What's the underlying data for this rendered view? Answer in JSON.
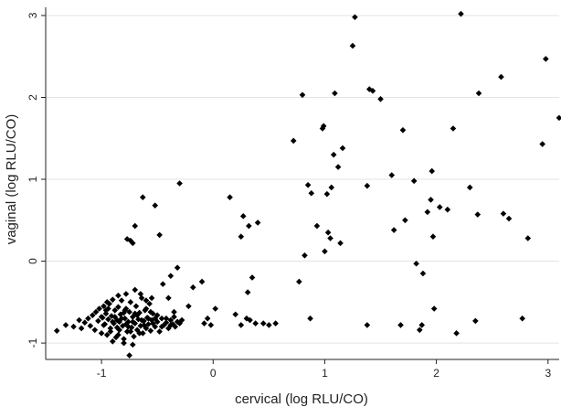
{
  "chart_data": {
    "type": "scatter",
    "title": "",
    "xlabel": "cervical (log RLU/CO)",
    "ylabel": "vaginal (log RLU/CO)",
    "xlim": [
      -1.5,
      3.1
    ],
    "ylim": [
      -1.2,
      3.1
    ],
    "x_ticks": [
      -1,
      0,
      1,
      2,
      3
    ],
    "y_ticks": [
      -1,
      0,
      1,
      2,
      3
    ],
    "grid": "horizontal",
    "marker_color": "#000000",
    "grid_color": "#e3e3e3",
    "axis_color": "#222222",
    "series": [
      {
        "points": [
          [
            -1.4,
            -0.85
          ],
          [
            -1.32,
            -0.78
          ],
          [
            -1.25,
            -0.8
          ],
          [
            -1.2,
            -0.72
          ],
          [
            -1.18,
            -0.82
          ],
          [
            -1.15,
            -0.75
          ],
          [
            -1.12,
            -0.7
          ],
          [
            -1.1,
            -0.79
          ],
          [
            -1.08,
            -0.66
          ],
          [
            -1.06,
            -0.84
          ],
          [
            -1.05,
            -0.62
          ],
          [
            -1.03,
            -0.73
          ],
          [
            -1.02,
            -0.58
          ],
          [
            -1.0,
            -0.88
          ],
          [
            -0.99,
            -0.69
          ],
          [
            -0.98,
            -0.55
          ],
          [
            -0.97,
            -0.77
          ],
          [
            -0.96,
            -0.64
          ],
          [
            -0.95,
            -0.9
          ],
          [
            -0.94,
            -0.71
          ],
          [
            -0.93,
            -0.52
          ],
          [
            -0.92,
            -0.82
          ],
          [
            -0.91,
            -0.67
          ],
          [
            -0.9,
            -0.47
          ],
          [
            -0.89,
            -0.76
          ],
          [
            -0.88,
            -0.6
          ],
          [
            -0.87,
            -0.93
          ],
          [
            -0.86,
            -0.72
          ],
          [
            -0.85,
            -0.56
          ],
          [
            -0.84,
            -0.84
          ],
          [
            -0.83,
            -0.65
          ],
          [
            -0.82,
            -0.48
          ],
          [
            -0.81,
            -0.79
          ],
          [
            -0.8,
            -0.95
          ],
          [
            -0.79,
            -0.7
          ],
          [
            -0.78,
            -0.58
          ],
          [
            -0.77,
            -0.86
          ],
          [
            -0.76,
            -0.74
          ],
          [
            -0.75,
            -0.62
          ],
          [
            -0.74,
            -0.5
          ],
          [
            -0.73,
            -0.81
          ],
          [
            -0.72,
            -0.68
          ],
          [
            -0.71,
            -0.92
          ],
          [
            -0.7,
            -0.76
          ],
          [
            -0.69,
            -0.55
          ],
          [
            -0.68,
            -0.84
          ],
          [
            -0.67,
            -0.71
          ],
          [
            -0.66,
            -0.63
          ],
          [
            -0.65,
            -0.79
          ],
          [
            -0.64,
            -0.45
          ],
          [
            -0.63,
            -0.88
          ],
          [
            -0.62,
            -0.73
          ],
          [
            -0.61,
            -0.6
          ],
          [
            -0.6,
            -0.82
          ],
          [
            -0.59,
            -0.69
          ],
          [
            -0.58,
            -0.77
          ],
          [
            -0.57,
            -0.52
          ],
          [
            -0.56,
            -0.85
          ],
          [
            -0.55,
            -0.72
          ],
          [
            -0.54,
            -0.64
          ],
          [
            -0.52,
            -0.8
          ],
          [
            -0.5,
            -0.74
          ],
          [
            -0.48,
            -0.86
          ],
          [
            -0.46,
            -0.7
          ],
          [
            -0.44,
            -0.78
          ],
          [
            -0.42,
            -0.75
          ],
          [
            -0.4,
            -0.82
          ],
          [
            -0.38,
            -0.72
          ],
          [
            -0.36,
            -0.77
          ],
          [
            -0.34,
            -0.8
          ],
          [
            -0.32,
            -0.74
          ],
          [
            -0.96,
            -0.6
          ],
          [
            -0.92,
            -0.86
          ],
          [
            -0.88,
            -0.68
          ],
          [
            -0.84,
            -0.74
          ],
          [
            -0.8,
            -0.63
          ],
          [
            -0.76,
            -0.8
          ],
          [
            -0.72,
            -0.74
          ],
          [
            -0.68,
            -0.66
          ],
          [
            -0.64,
            -0.72
          ],
          [
            -0.6,
            -0.58
          ],
          [
            -0.56,
            -0.62
          ],
          [
            -0.52,
            -0.7
          ],
          [
            -0.86,
            -0.81
          ],
          [
            -0.82,
            -0.7
          ],
          [
            -0.78,
            -0.77
          ],
          [
            -0.74,
            -0.86
          ],
          [
            -0.7,
            -0.64
          ],
          [
            -0.66,
            -0.88
          ],
          [
            -1.0,
            -0.68
          ],
          [
            -0.98,
            -0.78
          ],
          [
            -0.94,
            -0.58
          ],
          [
            -0.9,
            -0.74
          ],
          [
            -0.85,
            -0.9
          ],
          [
            -0.79,
            -0.6
          ],
          [
            -0.75,
            -1.15
          ],
          [
            -0.72,
            -1.02
          ],
          [
            -0.8,
            -1.0
          ],
          [
            -0.9,
            -0.98
          ],
          [
            -0.78,
            -0.4
          ],
          [
            -0.7,
            -0.35
          ],
          [
            -0.85,
            -0.42
          ],
          [
            -0.65,
            -0.4
          ],
          [
            -0.95,
            -0.5
          ],
          [
            -0.6,
            -0.48
          ],
          [
            -0.55,
            -0.45
          ],
          [
            -0.62,
            -0.78
          ],
          [
            -0.58,
            -0.7
          ],
          [
            -0.54,
            -0.76
          ],
          [
            -0.5,
            -0.66
          ],
          [
            -0.46,
            -0.8
          ],
          [
            -0.42,
            -0.7
          ],
          [
            -0.38,
            -0.78
          ],
          [
            -0.35,
            -0.68
          ],
          [
            -0.3,
            -0.76
          ],
          [
            -0.28,
            -0.72
          ],
          [
            -0.74,
            0.25
          ],
          [
            -0.77,
            0.27
          ],
          [
            -0.72,
            0.22
          ],
          [
            -0.7,
            0.43
          ],
          [
            -0.63,
            0.78
          ],
          [
            -0.52,
            0.68
          ],
          [
            -0.48,
            0.32
          ],
          [
            -0.3,
            0.95
          ],
          [
            -0.35,
            -0.62
          ],
          [
            -0.4,
            -0.45
          ],
          [
            -0.32,
            -0.08
          ],
          [
            -0.38,
            -0.18
          ],
          [
            -0.45,
            -0.28
          ],
          [
            -0.22,
            -0.55
          ],
          [
            -0.18,
            -0.32
          ],
          [
            -0.1,
            -0.25
          ],
          [
            -0.08,
            -0.76
          ],
          [
            -0.05,
            -0.7
          ],
          [
            -0.02,
            -0.78
          ],
          [
            0.02,
            -0.58
          ],
          [
            0.15,
            0.78
          ],
          [
            0.2,
            -0.65
          ],
          [
            0.25,
            -0.78
          ],
          [
            0.25,
            0.3
          ],
          [
            0.27,
            0.55
          ],
          [
            0.3,
            -0.7
          ],
          [
            0.31,
            -0.38
          ],
          [
            0.32,
            0.43
          ],
          [
            0.33,
            -0.72
          ],
          [
            0.35,
            -0.2
          ],
          [
            0.38,
            -0.76
          ],
          [
            0.4,
            0.47
          ],
          [
            0.45,
            -0.76
          ],
          [
            0.5,
            -0.78
          ],
          [
            0.56,
            -0.76
          ],
          [
            0.72,
            1.47
          ],
          [
            0.77,
            -0.25
          ],
          [
            0.8,
            2.03
          ],
          [
            0.82,
            0.07
          ],
          [
            0.85,
            0.93
          ],
          [
            0.87,
            -0.7
          ],
          [
            0.88,
            0.83
          ],
          [
            0.93,
            0.43
          ],
          [
            0.98,
            1.62
          ],
          [
            0.99,
            1.65
          ],
          [
            1.0,
            0.12
          ],
          [
            1.02,
            0.82
          ],
          [
            1.03,
            0.35
          ],
          [
            1.05,
            0.28
          ],
          [
            1.06,
            0.9
          ],
          [
            1.08,
            1.3
          ],
          [
            1.09,
            2.05
          ],
          [
            1.12,
            1.15
          ],
          [
            1.14,
            0.22
          ],
          [
            1.16,
            1.38
          ],
          [
            1.25,
            2.63
          ],
          [
            1.27,
            2.98
          ],
          [
            1.38,
            -0.78
          ],
          [
            1.38,
            0.92
          ],
          [
            1.4,
            2.1
          ],
          [
            1.43,
            2.08
          ],
          [
            1.5,
            1.98
          ],
          [
            1.6,
            1.05
          ],
          [
            1.62,
            0.38
          ],
          [
            1.68,
            -0.78
          ],
          [
            1.7,
            1.6
          ],
          [
            1.72,
            0.5
          ],
          [
            1.8,
            0.98
          ],
          [
            1.82,
            -0.03
          ],
          [
            1.85,
            -0.84
          ],
          [
            1.87,
            -0.78
          ],
          [
            1.88,
            -0.15
          ],
          [
            1.92,
            0.6
          ],
          [
            1.95,
            0.75
          ],
          [
            1.96,
            1.1
          ],
          [
            1.97,
            0.3
          ],
          [
            1.98,
            -0.58
          ],
          [
            2.03,
            0.66
          ],
          [
            2.1,
            0.63
          ],
          [
            2.15,
            1.62
          ],
          [
            2.18,
            -0.88
          ],
          [
            2.22,
            3.02
          ],
          [
            2.3,
            0.9
          ],
          [
            2.35,
            -0.73
          ],
          [
            2.37,
            0.57
          ],
          [
            2.38,
            2.05
          ],
          [
            2.58,
            2.25
          ],
          [
            2.6,
            0.58
          ],
          [
            2.65,
            0.52
          ],
          [
            2.77,
            -0.7
          ],
          [
            2.82,
            0.28
          ],
          [
            2.95,
            1.43
          ],
          [
            2.98,
            2.47
          ],
          [
            3.1,
            1.75
          ]
        ]
      }
    ]
  }
}
